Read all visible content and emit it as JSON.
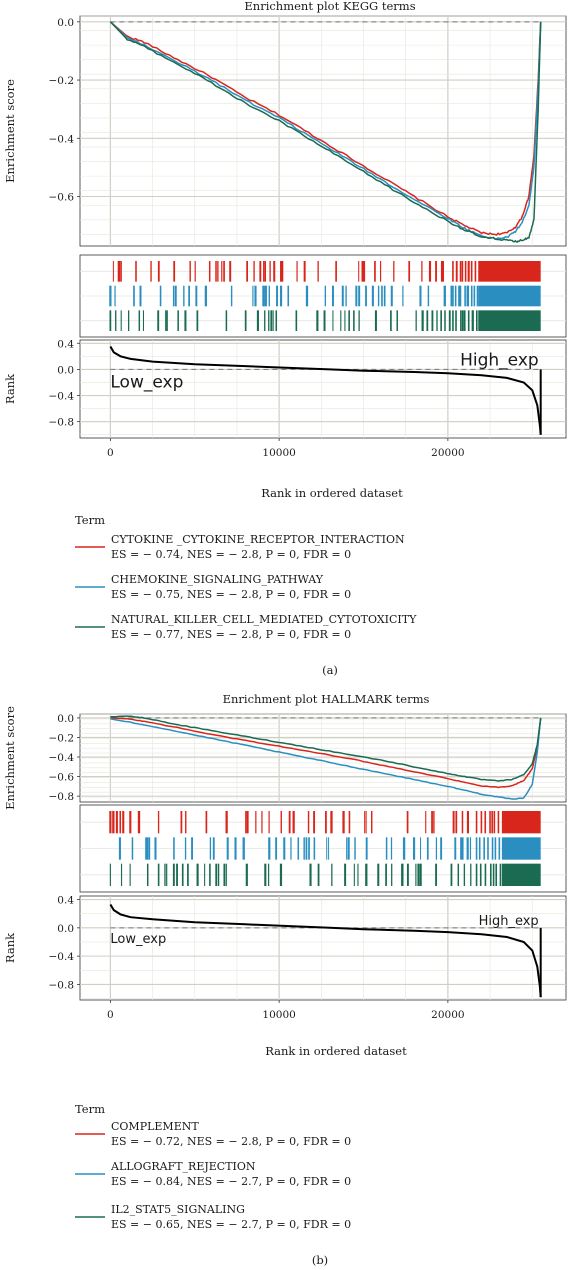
{
  "chart_data": [
    {
      "type": "line",
      "title": "Enrichment plot KEGG terms",
      "panel_label": "(a)",
      "xlabel": "Rank in ordered dataset",
      "es_ylabel": "Enrichment score",
      "rank_ylabel": "Rank",
      "xlim": [
        -1800,
        27000
      ],
      "x_ticks": [
        0,
        10000,
        20000
      ],
      "es_ylim": [
        -0.77,
        0.02
      ],
      "es_ticks": [
        0.0,
        -0.2,
        -0.4,
        -0.6
      ],
      "es_tick_labels": [
        "0.0",
        "−0.2",
        "−0.4",
        "−0.6"
      ],
      "rank_ylim": [
        -1.05,
        0.45
      ],
      "rank_ticks": [
        0.4,
        0.0,
        -0.4,
        -0.8
      ],
      "rank_tick_labels": [
        "0.4",
        "0.0",
        "−0.4",
        "−0.8"
      ],
      "low_label": "Low_exp",
      "high_label": "High_exp",
      "grid": true,
      "legend_title": "Term",
      "legend_position": "bottom",
      "series": [
        {
          "name": "CYTOKINE _CYTOKINE_RECEPTOR_INTERACTION",
          "stats": "ES = − 0.74, NES = − 2.8, P = 0, FDR = 0",
          "color": "#d9261c",
          "x": [
            0,
            1000,
            2000,
            4000,
            6000,
            8000,
            10000,
            12000,
            14000,
            16000,
            18000,
            20000,
            21000,
            22000,
            22800,
            23500,
            24000,
            24400,
            24800,
            25100,
            25350,
            25500
          ],
          "y": [
            0,
            -0.05,
            -0.07,
            -0.13,
            -0.19,
            -0.26,
            -0.32,
            -0.39,
            -0.46,
            -0.53,
            -0.6,
            -0.67,
            -0.7,
            -0.725,
            -0.73,
            -0.725,
            -0.705,
            -0.67,
            -0.6,
            -0.46,
            -0.2,
            0
          ]
        },
        {
          "name": "CHEMOKINE_SIGNALING_PATHWAY",
          "stats": "ES = − 0.75, NES = − 2.8, P = 0, FDR = 0",
          "color": "#2a8fc0",
          "x": [
            0,
            1000,
            2000,
            4000,
            6000,
            8000,
            10000,
            12000,
            14000,
            16000,
            18000,
            20000,
            21000,
            22000,
            22800,
            23500,
            24000,
            24400,
            24800,
            25100,
            25350,
            25500
          ],
          "y": [
            0,
            -0.055,
            -0.08,
            -0.14,
            -0.2,
            -0.27,
            -0.33,
            -0.4,
            -0.47,
            -0.54,
            -0.61,
            -0.675,
            -0.71,
            -0.735,
            -0.745,
            -0.74,
            -0.72,
            -0.69,
            -0.63,
            -0.5,
            -0.22,
            0
          ]
        },
        {
          "name": "NATURAL_KILLER_CELL_MEDIATED_CYTOTOXICITY",
          "stats": "ES = − 0.77, NES = − 2.8, P = 0, FDR = 0",
          "color": "#1a6b52",
          "x": [
            0,
            1000,
            2000,
            4000,
            6000,
            8000,
            10000,
            12000,
            14000,
            16000,
            18000,
            20000,
            21000,
            22000,
            22800,
            23500,
            24000,
            24400,
            24800,
            25100,
            25350,
            25500
          ],
          "y": [
            0,
            -0.06,
            -0.085,
            -0.145,
            -0.21,
            -0.28,
            -0.34,
            -0.41,
            -0.48,
            -0.55,
            -0.62,
            -0.685,
            -0.715,
            -0.74,
            -0.745,
            -0.75,
            -0.755,
            -0.75,
            -0.74,
            -0.68,
            -0.3,
            0
          ]
        }
      ],
      "rank_curve": {
        "x": [
          0,
          200,
          600,
          1200,
          2500,
          5000,
          8000,
          11000,
          13000,
          15000,
          18000,
          20000,
          22000,
          23500,
          24500,
          25000,
          25300,
          25450,
          25500
        ],
        "y": [
          0.35,
          0.26,
          0.2,
          0.16,
          0.12,
          0.08,
          0.05,
          0.02,
          0.0,
          -0.02,
          -0.04,
          -0.06,
          -0.09,
          -0.13,
          -0.2,
          -0.32,
          -0.55,
          -0.85,
          -1.0
        ]
      }
    },
    {
      "type": "line",
      "title": "Enrichment plot HALLMARK terms",
      "panel_label": "(b)",
      "xlabel": "Rank in ordered dataset",
      "es_ylabel": "Enrichment score",
      "rank_ylabel": "Rank",
      "xlim": [
        -1800,
        27000
      ],
      "x_ticks": [
        0,
        10000,
        20000
      ],
      "es_ylim": [
        -0.86,
        0.04
      ],
      "es_ticks": [
        0.0,
        -0.2,
        -0.4,
        -0.6,
        -0.8
      ],
      "es_tick_labels": [
        "0.0",
        "−0.2",
        "−0.4",
        "−0.6",
        "−0.8"
      ],
      "rank_ylim": [
        -1.02,
        0.45
      ],
      "rank_ticks": [
        0.4,
        0.0,
        -0.4,
        -0.8
      ],
      "rank_tick_labels": [
        "0.4",
        "0.0",
        "−0.4",
        "−0.8"
      ],
      "low_label": "Low_exp",
      "high_label": "High_exp",
      "grid": true,
      "legend_title": "Term",
      "legend_position": "bottom",
      "series": [
        {
          "name": "COMPLEMENT",
          "stats": "ES = − 0.72, NES = − 2.8, P = 0, FDR = 0",
          "color": "#d9261c",
          "x": [
            0,
            1000,
            2000,
            4000,
            6000,
            8000,
            10000,
            12000,
            14000,
            16000,
            18000,
            20000,
            21000,
            22000,
            23000,
            23800,
            24500,
            25000,
            25300,
            25500
          ],
          "y": [
            0,
            -0.01,
            -0.035,
            -0.1,
            -0.17,
            -0.23,
            -0.29,
            -0.35,
            -0.41,
            -0.48,
            -0.55,
            -0.62,
            -0.66,
            -0.695,
            -0.71,
            -0.695,
            -0.64,
            -0.52,
            -0.3,
            0
          ]
        },
        {
          "name": "ALLOGRAFT_REJECTION",
          "stats": "ES = − 0.84, NES = − 2.7, P = 0, FDR = 0",
          "color": "#2a8fc0",
          "x": [
            0,
            1000,
            2000,
            4000,
            6000,
            8000,
            10000,
            12000,
            14000,
            16000,
            18000,
            20000,
            21000,
            22000,
            23000,
            23800,
            24500,
            25000,
            25300,
            25500
          ],
          "y": [
            -0.01,
            -0.04,
            -0.07,
            -0.14,
            -0.21,
            -0.28,
            -0.35,
            -0.42,
            -0.49,
            -0.56,
            -0.63,
            -0.7,
            -0.74,
            -0.78,
            -0.81,
            -0.83,
            -0.82,
            -0.68,
            -0.35,
            0
          ]
        },
        {
          "name": "IL2_STAT5_SIGNALING",
          "stats": "ES = − 0.65, NES = − 2.7, P = 0, FDR = 0",
          "color": "#1a6b52",
          "x": [
            0,
            1000,
            2000,
            4000,
            6000,
            8000,
            10000,
            12000,
            14000,
            16000,
            18000,
            20000,
            21000,
            22000,
            23000,
            23800,
            24500,
            25000,
            25300,
            25500
          ],
          "y": [
            0.01,
            0.02,
            0.0,
            -0.07,
            -0.13,
            -0.19,
            -0.25,
            -0.31,
            -0.37,
            -0.43,
            -0.5,
            -0.57,
            -0.6,
            -0.63,
            -0.645,
            -0.63,
            -0.58,
            -0.47,
            -0.27,
            0
          ]
        }
      ],
      "rank_curve": {
        "x": [
          0,
          200,
          600,
          1200,
          2500,
          5000,
          8000,
          11000,
          13000,
          15000,
          18000,
          20000,
          22000,
          23500,
          24500,
          25000,
          25300,
          25450,
          25500
        ],
        "y": [
          0.33,
          0.25,
          0.19,
          0.15,
          0.12,
          0.08,
          0.05,
          0.02,
          0.0,
          -0.02,
          -0.04,
          -0.06,
          -0.09,
          -0.13,
          -0.2,
          -0.32,
          -0.55,
          -0.82,
          -0.98
        ]
      }
    }
  ]
}
